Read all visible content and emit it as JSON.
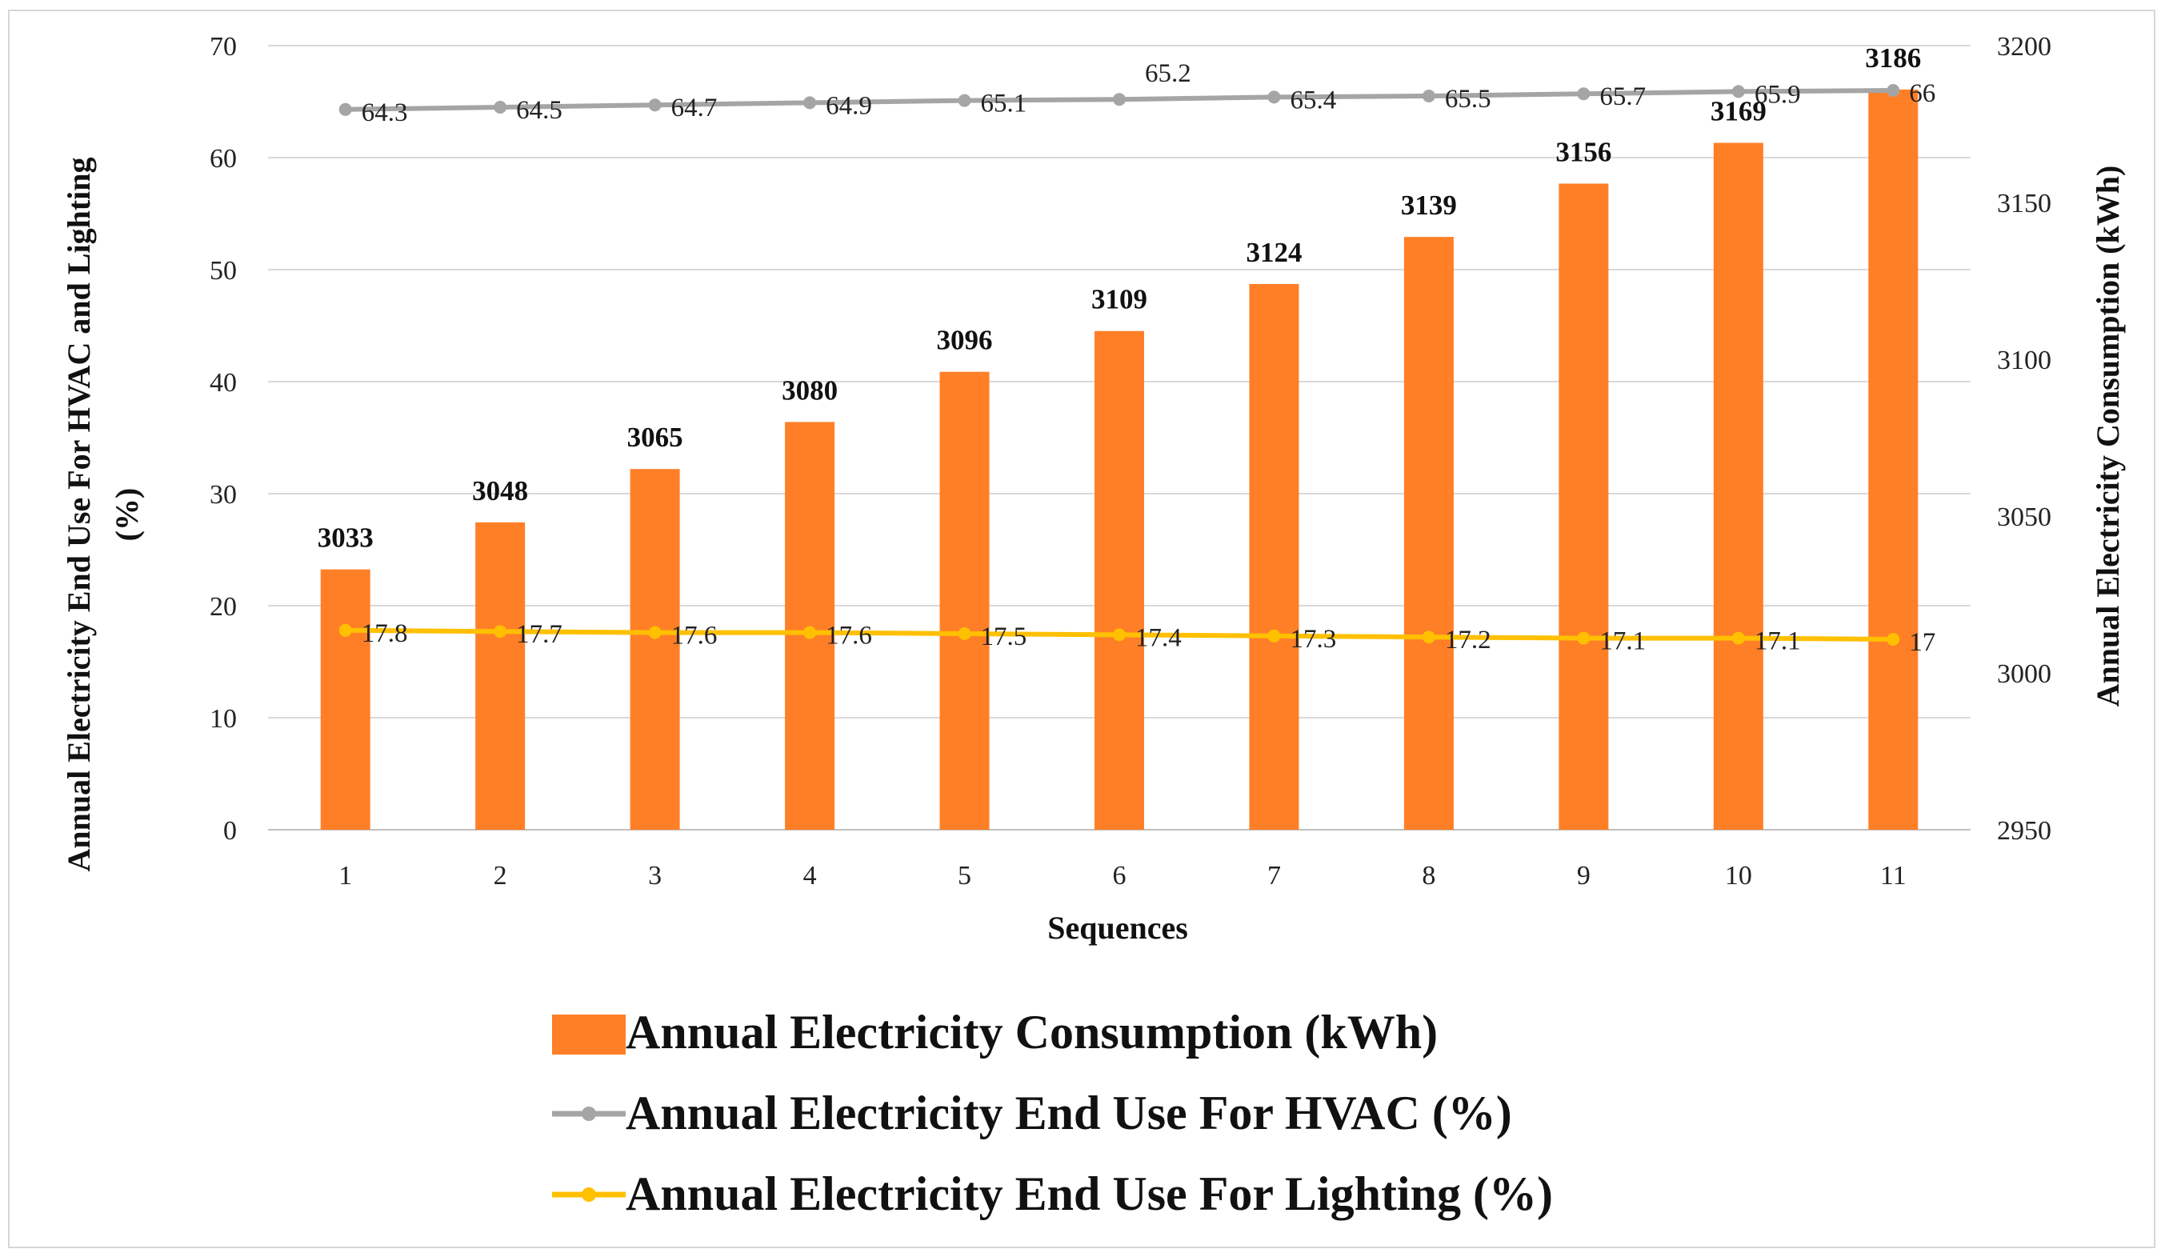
{
  "chart_data": {
    "type": "bar+line",
    "xlabel": "Sequences",
    "ylabel_left_line1": "Annual  Electricity  End Use For HVAC and Lighting",
    "ylabel_left_line2": "(%)",
    "ylabel_right": "Annual  Electricity  Consumption  (kWh)",
    "categories": [
      "1",
      "2",
      "3",
      "4",
      "5",
      "6",
      "7",
      "8",
      "9",
      "10",
      "11"
    ],
    "left_axis": {
      "min": 0,
      "max": 70,
      "ticks": [
        "0",
        "10",
        "20",
        "30",
        "40",
        "50",
        "60",
        "70"
      ]
    },
    "right_axis": {
      "min": 2950,
      "max": 3200,
      "ticks": [
        "2950",
        "3000",
        "3050",
        "3100",
        "3150",
        "3200"
      ]
    },
    "series": [
      {
        "name": "Annual Electricity Consumption (kWh)",
        "type": "bar",
        "axis": "right",
        "color": "#FF7F27",
        "values": [
          3033,
          3048,
          3065,
          3080,
          3096,
          3109,
          3124,
          3139,
          3156,
          3169,
          3186
        ],
        "labels": [
          "3033",
          "3048",
          "3065",
          "3080",
          "3096",
          "3109",
          "3124",
          "3139",
          "3156",
          "3169",
          "3186"
        ]
      },
      {
        "name": "Annual Electricity End Use For HVAC (%)",
        "type": "line",
        "axis": "left",
        "color": "#A5A5A5",
        "values": [
          64.3,
          64.5,
          64.7,
          64.9,
          65.1,
          65.2,
          65.4,
          65.5,
          65.7,
          65.9,
          66
        ],
        "labels": [
          "64.3",
          "64.5",
          "64.7",
          "64.9",
          "65.1",
          "65.2",
          "65.4",
          "65.5",
          "65.7",
          "65.9",
          "66"
        ]
      },
      {
        "name": "Annual Electricity End Use For Lighting (%)",
        "type": "line",
        "axis": "left",
        "color": "#FFC000",
        "values": [
          17.8,
          17.7,
          17.6,
          17.6,
          17.5,
          17.4,
          17.3,
          17.2,
          17.1,
          17.1,
          17
        ],
        "labels": [
          "17.8",
          "17.7",
          "17.6",
          "17.6",
          "17.5",
          "17.4",
          "17.3",
          "17.2",
          "17.1",
          "17.1",
          "17"
        ]
      }
    ],
    "legend_position": "bottom-center",
    "grid": true
  }
}
